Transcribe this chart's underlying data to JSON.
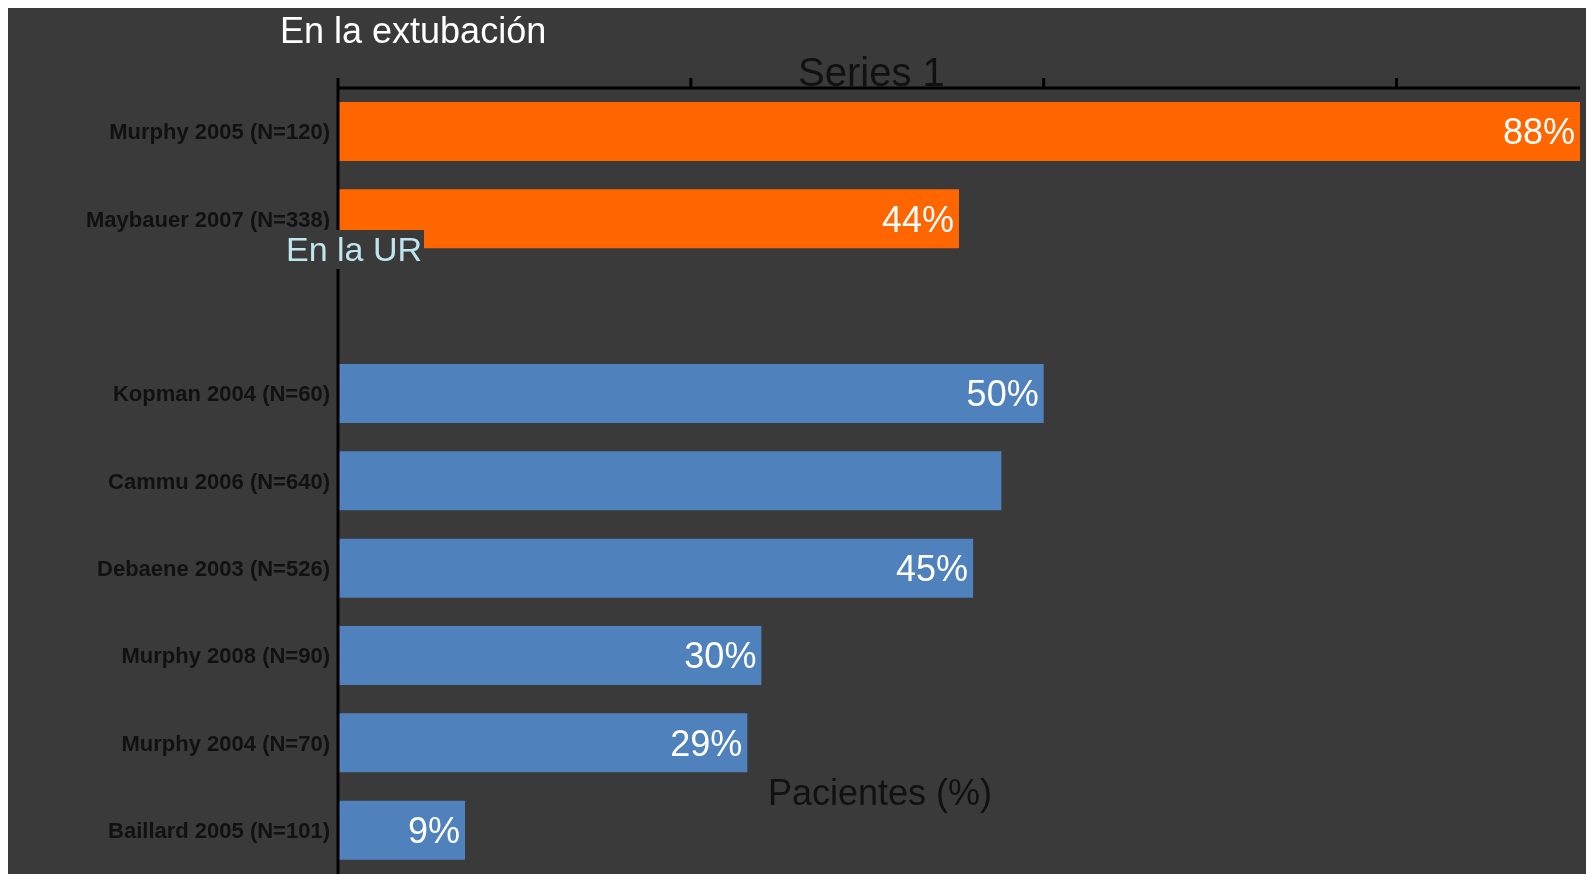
{
  "chart_data": {
    "type": "bar",
    "orientation": "horizontal",
    "categories": [
      "Murphy 2005 (N=120)",
      "Maybauer 2007 (N=338)",
      null,
      "Kopman 2004 (N=60)",
      "Cammu 2006 (N=640)",
      "Debaene 2003 (N=526)",
      "Murphy 2008 (N=90)",
      "Murphy 2004 (N=70)",
      "Baillard 2005 (N=101)"
    ],
    "values": [
      88,
      44,
      null,
      50,
      47,
      45,
      30,
      29,
      9
    ],
    "colors": [
      "#ff6600",
      "#ff6600",
      "#4f81bd",
      "#4f81bd",
      "#4f81bd",
      "#4f81bd",
      "#4f81bd",
      "#4f81bd",
      "#4f81bd"
    ],
    "value_labels": [
      "88%",
      "44%",
      null,
      "50%",
      null,
      "45%",
      "30%",
      "29%",
      "9%"
    ],
    "xlim": [
      0,
      88
    ],
    "xticks": [
      {
        "value": 0,
        "label": null
      },
      {
        "value": 25,
        "label": null
      },
      {
        "value": 50,
        "label": null
      },
      {
        "value": 75,
        "label": null
      }
    ],
    "tick_labels": "y",
    "xlabel": "Pacientes (%)",
    "annotations": [
      "En la extubación",
      "En la UR",
      "Series 1"
    ]
  }
}
